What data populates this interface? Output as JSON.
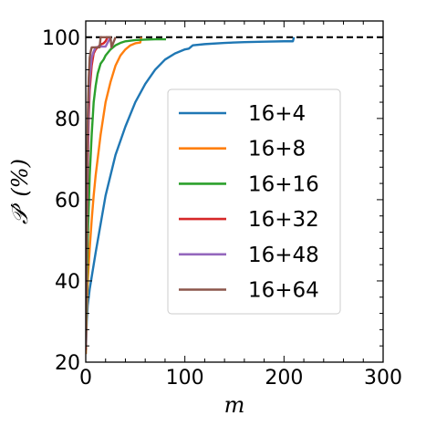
{
  "chart_data": {
    "type": "line",
    "xlabel": "m",
    "ylabel": "𝒫′ (%)",
    "xlim": [
      0,
      300
    ],
    "ylim": [
      20,
      104
    ],
    "xticks": [
      "0",
      "100",
      "200",
      "300"
    ],
    "yticks": [
      "20",
      "40",
      "60",
      "80",
      "100"
    ],
    "grid": false,
    "legend_position": "center-right",
    "reference_line": {
      "y": 100,
      "style": "dashed",
      "color": "#000000"
    },
    "series": [
      {
        "name": "16+4",
        "color": "#1f77b4",
        "x": [
          0,
          1,
          2,
          4,
          6,
          8,
          10,
          15,
          20,
          25,
          30,
          40,
          50,
          60,
          70,
          80,
          90,
          100,
          104,
          108,
          120,
          140,
          160,
          180,
          200,
          209,
          210
        ],
        "y": [
          22,
          30,
          34,
          38,
          41,
          44,
          47,
          54,
          61,
          66,
          71,
          78,
          84,
          88.5,
          92,
          94.5,
          96,
          97,
          97.2,
          98,
          98.3,
          98.6,
          98.8,
          98.9,
          99,
          99,
          100
        ]
      },
      {
        "name": "16+8",
        "color": "#ff7f0e",
        "x": [
          0,
          1,
          2,
          4,
          6,
          8,
          10,
          15,
          20,
          25,
          30,
          35,
          40,
          45,
          50,
          55,
          56
        ],
        "y": [
          22,
          33,
          40,
          48,
          55,
          61,
          66,
          76,
          84,
          89,
          93,
          95.5,
          97,
          98,
          98.5,
          98.7,
          100
        ]
      },
      {
        "name": "16+16",
        "color": "#2ca02c",
        "x": [
          0,
          1,
          2,
          4,
          6,
          8,
          10,
          12,
          15,
          18,
          20,
          25,
          30,
          35,
          40,
          50,
          60,
          70,
          80,
          81
        ],
        "y": [
          23,
          38,
          50,
          66,
          76,
          84,
          88,
          91,
          93.5,
          94.5,
          95.5,
          97,
          98,
          98.6,
          99,
          99.3,
          99.4,
          99.5,
          99.5,
          99.5
        ]
      },
      {
        "name": "16+32",
        "color": "#d62728",
        "x": [
          0,
          1,
          2,
          3,
          4,
          6,
          8,
          10,
          12,
          14,
          16,
          18,
          20,
          22
        ],
        "y": [
          23,
          50,
          68,
          80,
          87,
          93,
          96,
          97,
          97.5,
          98,
          98.3,
          98.5,
          99,
          100
        ]
      },
      {
        "name": "16+48",
        "color": "#9467bd",
        "x": [
          0,
          1,
          2,
          3,
          4,
          6,
          8,
          10,
          12,
          14,
          16,
          18,
          20,
          25
        ],
        "y": [
          24,
          54,
          72,
          84,
          90,
          95,
          96.5,
          97.5,
          97.6,
          97.7,
          97.7,
          97.7,
          97.7,
          100
        ]
      },
      {
        "name": "16+64",
        "color": "#8c564b",
        "x": [
          0,
          1,
          2,
          3,
          4,
          5,
          6,
          8,
          10,
          12,
          14,
          15,
          25,
          26,
          30
        ],
        "y": [
          24,
          60,
          80,
          90,
          95,
          96.5,
          97.5,
          97.5,
          97.5,
          97.5,
          97.5,
          100,
          100,
          97.5,
          100
        ]
      }
    ]
  }
}
